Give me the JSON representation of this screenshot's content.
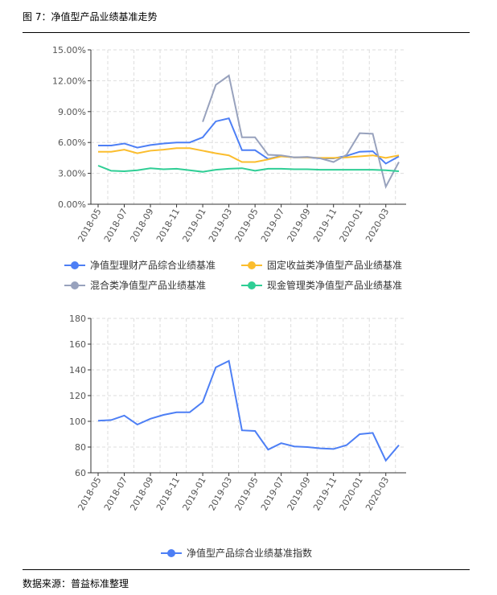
{
  "figure_title": "图 7：净值型产品业绩基准走势",
  "source": "数据来源：普益标准整理",
  "chart_data": [
    {
      "type": "line",
      "title": "",
      "ylim": [
        0,
        15
      ],
      "yticks": [
        "0.00%",
        "3.00%",
        "6.00%",
        "9.00%",
        "12.00%",
        "15.00%"
      ],
      "ytick_values": [
        0,
        3,
        6,
        9,
        12,
        15
      ],
      "x": [
        "2018-05",
        "2018-06",
        "2018-07",
        "2018-08",
        "2018-09",
        "2018-10",
        "2018-11",
        "2018-12",
        "2019-01",
        "2019-02",
        "2019-03",
        "2019-04",
        "2019-05",
        "2019-06",
        "2019-07",
        "2019-08",
        "2019-09",
        "2019-10",
        "2019-11",
        "2019-12",
        "2020-01",
        "2020-02",
        "2020-03",
        "2020-04"
      ],
      "xtick_labels": [
        "2018-05",
        "2018-07",
        "2018-09",
        "2018-11",
        "2019-01",
        "2019-03",
        "2019-05",
        "2019-07",
        "2019-09",
        "2019-11",
        "2020-01",
        "2020-03"
      ],
      "grid": true,
      "legend_placement": "bottom",
      "series": [
        {
          "name": "净值型理财产品综合业绩基准",
          "color": "#4d7ff5",
          "values": [
            5.7,
            5.7,
            5.9,
            5.5,
            5.75,
            5.9,
            6.0,
            6.0,
            6.5,
            8.05,
            8.35,
            5.25,
            5.25,
            4.4,
            4.7,
            4.55,
            4.55,
            4.45,
            4.45,
            4.7,
            5.1,
            5.15,
            3.95,
            4.65
          ]
        },
        {
          "name": "固定收益类净值型产品业绩基准",
          "color": "#fbbd2d",
          "values": [
            5.1,
            5.1,
            5.3,
            4.95,
            5.2,
            5.3,
            5.45,
            5.45,
            5.2,
            4.95,
            4.75,
            4.1,
            4.1,
            4.35,
            4.65,
            4.55,
            4.55,
            4.5,
            4.5,
            4.55,
            4.65,
            4.75,
            4.5,
            4.75
          ]
        },
        {
          "name": "混合类净值型产品业绩基准",
          "color": "#98a2bd",
          "values": [
            null,
            null,
            null,
            null,
            null,
            null,
            null,
            null,
            8.0,
            11.6,
            12.5,
            6.5,
            6.5,
            4.8,
            4.75,
            4.55,
            4.6,
            4.45,
            4.1,
            4.8,
            6.9,
            6.85,
            1.7,
            4.1
          ]
        },
        {
          "name": "现金管理类净值型产品业绩基准",
          "color": "#2fce95",
          "values": [
            3.75,
            3.25,
            3.2,
            3.3,
            3.5,
            3.4,
            3.45,
            3.3,
            3.15,
            3.35,
            3.45,
            3.5,
            3.25,
            3.45,
            3.45,
            3.4,
            3.4,
            3.35,
            3.35,
            3.35,
            3.35,
            3.35,
            3.3,
            3.2
          ]
        }
      ]
    },
    {
      "type": "line",
      "title": "",
      "ylim": [
        60,
        180
      ],
      "yticks": [
        "60",
        "80",
        "100",
        "120",
        "140",
        "160",
        "180"
      ],
      "ytick_values": [
        60,
        80,
        100,
        120,
        140,
        160,
        180
      ],
      "grid": true,
      "legend_placement": "bottom",
      "series": [
        {
          "name": "净值型产品综合业绩基准指数",
          "color": "#4d7ff5",
          "values": [
            100.5,
            101,
            104.5,
            97.5,
            102,
            105,
            107,
            107,
            115,
            142,
            147,
            93,
            92.5,
            78,
            83,
            80.5,
            80,
            79,
            78.5,
            81.5,
            90,
            91,
            69.5,
            81.5
          ]
        }
      ]
    }
  ]
}
